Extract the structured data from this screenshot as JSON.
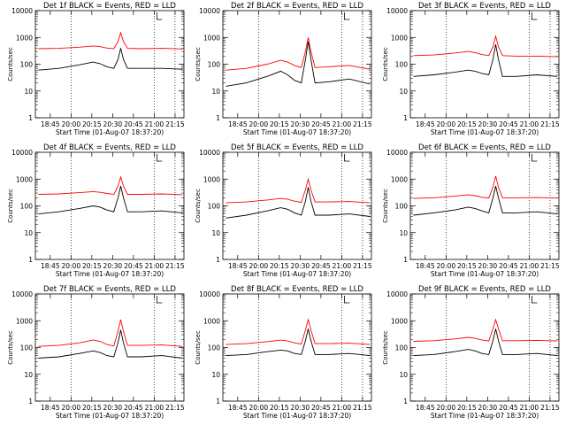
{
  "figure": {
    "ylabel": "Counts/sec",
    "xlabel": "Start Time (01-Aug-07 18:37:20)",
    "x_ticks": [
      "18:45",
      "20:00",
      "20:15",
      "20:30",
      "20:45",
      "21:00",
      "21:15"
    ],
    "y_ticks": [
      "1",
      "10",
      "100",
      "1000",
      "10000"
    ],
    "series_colors": {
      "events": "#000000",
      "lld": "#ff0000"
    }
  },
  "chart_data": [
    {
      "type": "line",
      "title": "Det 1f BLACK = Events, RED = LLD",
      "yscale": "log",
      "ylim": [
        1,
        10000
      ],
      "series": [
        {
          "color": "#000000",
          "x": [
            "19:30",
            "19:45",
            "20:00",
            "20:10",
            "20:15",
            "20:20",
            "20:25",
            "20:28",
            "20:30",
            "20:32",
            "20:35",
            "20:45",
            "21:00",
            "21:15"
          ],
          "values": [
            60,
            70,
            95,
            120,
            105,
            80,
            70,
            150,
            400,
            150,
            70,
            70,
            70,
            65
          ]
        },
        {
          "color": "#ff0000",
          "x": [
            "19:30",
            "19:45",
            "20:00",
            "20:10",
            "20:15",
            "20:20",
            "20:25",
            "20:28",
            "20:30",
            "20:32",
            "20:35",
            "20:45",
            "21:00",
            "21:15"
          ],
          "values": [
            380,
            390,
            430,
            480,
            450,
            400,
            380,
            700,
            1500,
            700,
            390,
            380,
            390,
            370
          ]
        }
      ]
    },
    {
      "type": "line",
      "title": "Det 2f BLACK = Events, RED = LLD",
      "yscale": "log",
      "ylim": [
        1,
        10000
      ],
      "series": [
        {
          "color": "#000000",
          "x": [
            "19:30",
            "19:45",
            "20:00",
            "20:10",
            "20:15",
            "20:20",
            "20:25",
            "20:28",
            "20:30",
            "20:32",
            "20:35",
            "20:45",
            "21:00",
            "21:15"
          ],
          "values": [
            15,
            20,
            35,
            55,
            40,
            25,
            20,
            150,
            700,
            150,
            20,
            22,
            28,
            18
          ]
        },
        {
          "color": "#ff0000",
          "x": [
            "19:30",
            "19:45",
            "20:00",
            "20:10",
            "20:15",
            "20:20",
            "20:25",
            "20:28",
            "20:30",
            "20:32",
            "20:35",
            "20:45",
            "21:00",
            "21:15"
          ],
          "values": [
            60,
            70,
            100,
            140,
            120,
            90,
            75,
            300,
            1000,
            300,
            75,
            80,
            90,
            65
          ]
        }
      ]
    },
    {
      "type": "line",
      "title": "Det 3f BLACK = Events, RED = LLD",
      "yscale": "log",
      "ylim": [
        1,
        10000
      ],
      "series": [
        {
          "color": "#000000",
          "x": [
            "19:30",
            "19:45",
            "20:00",
            "20:10",
            "20:15",
            "20:20",
            "20:25",
            "20:28",
            "20:30",
            "20:32",
            "20:35",
            "20:45",
            "21:00",
            "21:15"
          ],
          "values": [
            35,
            40,
            50,
            60,
            55,
            45,
            40,
            150,
            550,
            150,
            35,
            35,
            40,
            35
          ]
        },
        {
          "color": "#ff0000",
          "x": [
            "19:30",
            "19:45",
            "20:00",
            "20:10",
            "20:15",
            "20:20",
            "20:25",
            "20:28",
            "20:30",
            "20:32",
            "20:35",
            "20:45",
            "21:00",
            "21:15"
          ],
          "values": [
            210,
            220,
            260,
            300,
            270,
            230,
            210,
            450,
            1100,
            450,
            210,
            200,
            200,
            190
          ]
        }
      ]
    },
    {
      "type": "line",
      "title": "Det 4f BLACK = Events, RED = LLD",
      "yscale": "log",
      "ylim": [
        1,
        10000
      ],
      "series": [
        {
          "color": "#000000",
          "x": [
            "19:30",
            "19:45",
            "20:00",
            "20:10",
            "20:15",
            "20:20",
            "20:25",
            "20:28",
            "20:30",
            "20:32",
            "20:35",
            "20:45",
            "21:00",
            "21:15"
          ],
          "values": [
            50,
            60,
            80,
            100,
            90,
            70,
            60,
            200,
            550,
            200,
            60,
            60,
            65,
            55
          ]
        },
        {
          "color": "#ff0000",
          "x": [
            "19:30",
            "19:45",
            "20:00",
            "20:10",
            "20:15",
            "20:20",
            "20:25",
            "20:28",
            "20:30",
            "20:32",
            "20:35",
            "20:45",
            "21:00",
            "21:15"
          ],
          "values": [
            270,
            280,
            310,
            340,
            320,
            290,
            270,
            550,
            1200,
            550,
            270,
            270,
            280,
            260
          ]
        }
      ]
    },
    {
      "type": "line",
      "title": "Det 5f BLACK = Events, RED = LLD",
      "yscale": "log",
      "ylim": [
        1,
        10000
      ],
      "series": [
        {
          "color": "#000000",
          "x": [
            "19:30",
            "19:45",
            "20:00",
            "20:10",
            "20:15",
            "20:20",
            "20:25",
            "20:28",
            "20:30",
            "20:32",
            "20:35",
            "20:45",
            "21:00",
            "21:15"
          ],
          "values": [
            35,
            45,
            65,
            85,
            75,
            55,
            45,
            150,
            500,
            150,
            45,
            45,
            50,
            40
          ]
        },
        {
          "color": "#ff0000",
          "x": [
            "19:30",
            "19:45",
            "20:00",
            "20:10",
            "20:15",
            "20:20",
            "20:25",
            "20:28",
            "20:30",
            "20:32",
            "20:35",
            "20:45",
            "21:00",
            "21:15"
          ],
          "values": [
            130,
            140,
            165,
            190,
            175,
            150,
            135,
            400,
            1000,
            400,
            140,
            140,
            145,
            130
          ]
        }
      ]
    },
    {
      "type": "line",
      "title": "Det 6f BLACK = Events, RED = LLD",
      "yscale": "log",
      "ylim": [
        1,
        10000
      ],
      "series": [
        {
          "color": "#000000",
          "x": [
            "19:30",
            "19:45",
            "20:00",
            "20:10",
            "20:15",
            "20:20",
            "20:25",
            "20:28",
            "20:30",
            "20:32",
            "20:35",
            "20:45",
            "21:00",
            "21:15"
          ],
          "values": [
            45,
            55,
            70,
            90,
            80,
            65,
            55,
            200,
            550,
            200,
            55,
            55,
            60,
            50
          ]
        },
        {
          "color": "#ff0000",
          "x": [
            "19:30",
            "19:45",
            "20:00",
            "20:10",
            "20:15",
            "20:20",
            "20:25",
            "20:28",
            "20:30",
            "20:32",
            "20:35",
            "20:45",
            "21:00",
            "21:15"
          ],
          "values": [
            190,
            200,
            230,
            260,
            240,
            210,
            195,
            500,
            1300,
            500,
            200,
            200,
            205,
            195
          ]
        }
      ]
    },
    {
      "type": "line",
      "title": "Det 7f BLACK = Events, RED = LLD",
      "yscale": "log",
      "ylim": [
        1,
        10000
      ],
      "series": [
        {
          "color": "#000000",
          "x": [
            "19:30",
            "19:45",
            "20:00",
            "20:10",
            "20:15",
            "20:20",
            "20:25",
            "20:28",
            "20:30",
            "20:32",
            "20:35",
            "20:45",
            "21:00",
            "21:15"
          ],
          "values": [
            40,
            45,
            60,
            75,
            65,
            50,
            45,
            150,
            450,
            150,
            45,
            45,
            50,
            40
          ]
        },
        {
          "color": "#ff0000",
          "x": [
            "19:30",
            "19:45",
            "20:00",
            "20:10",
            "20:15",
            "20:20",
            "20:25",
            "20:28",
            "20:30",
            "20:32",
            "20:35",
            "20:45",
            "21:00",
            "21:15"
          ],
          "values": [
            110,
            120,
            150,
            190,
            170,
            130,
            115,
            400,
            1100,
            400,
            120,
            120,
            125,
            110
          ]
        }
      ]
    },
    {
      "type": "line",
      "title": "Det 8f BLACK = Events, RED = LLD",
      "yscale": "log",
      "ylim": [
        1,
        10000
      ],
      "series": [
        {
          "color": "#000000",
          "x": [
            "19:30",
            "19:45",
            "20:00",
            "20:10",
            "20:15",
            "20:20",
            "20:25",
            "20:28",
            "20:30",
            "20:32",
            "20:35",
            "20:45",
            "21:00",
            "21:15"
          ],
          "values": [
            50,
            55,
            70,
            80,
            75,
            60,
            55,
            180,
            500,
            180,
            55,
            55,
            60,
            50
          ]
        },
        {
          "color": "#ff0000",
          "x": [
            "19:30",
            "19:45",
            "20:00",
            "20:10",
            "20:15",
            "20:20",
            "20:25",
            "20:28",
            "20:30",
            "20:32",
            "20:35",
            "20:45",
            "21:00",
            "21:15"
          ],
          "values": [
            130,
            140,
            165,
            190,
            175,
            150,
            135,
            450,
            1100,
            450,
            140,
            140,
            145,
            130
          ]
        }
      ]
    },
    {
      "type": "line",
      "title": "Det 9f BLACK = Events, RED = LLD",
      "yscale": "log",
      "ylim": [
        1,
        10000
      ],
      "series": [
        {
          "color": "#000000",
          "x": [
            "19:30",
            "19:45",
            "20:00",
            "20:10",
            "20:15",
            "20:20",
            "20:25",
            "20:28",
            "20:30",
            "20:32",
            "20:35",
            "20:45",
            "21:00",
            "21:15"
          ],
          "values": [
            50,
            55,
            70,
            85,
            75,
            60,
            55,
            180,
            500,
            180,
            55,
            55,
            60,
            50
          ]
        },
        {
          "color": "#ff0000",
          "x": [
            "19:30",
            "19:45",
            "20:00",
            "20:10",
            "20:15",
            "20:20",
            "20:25",
            "20:28",
            "20:30",
            "20:32",
            "20:35",
            "20:45",
            "21:00",
            "21:15"
          ],
          "values": [
            170,
            180,
            210,
            240,
            220,
            190,
            175,
            500,
            1100,
            500,
            180,
            180,
            185,
            175
          ]
        }
      ]
    }
  ]
}
